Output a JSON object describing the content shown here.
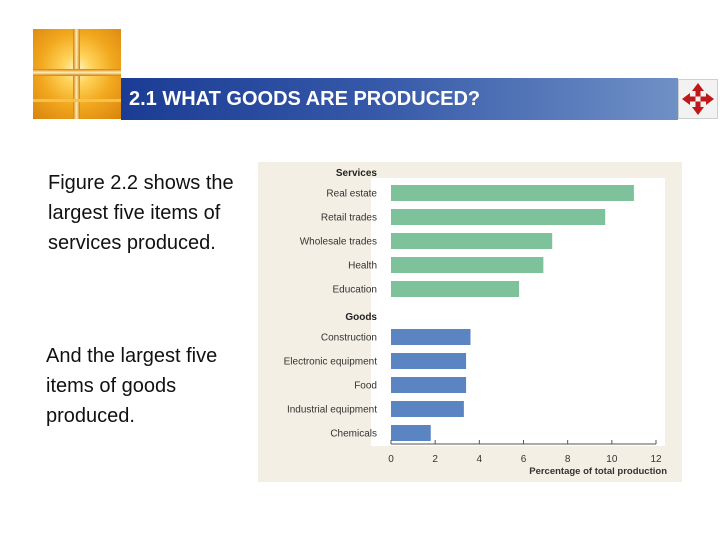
{
  "slide": {
    "title": "2.1 WHAT GOODS ARE PRODUCED?",
    "paragraph1": "Figure 2.2 shows the largest five items of services produced.",
    "paragraph2": "And the largest five items of goods produced."
  },
  "nav_icon": "four-arrows-icon",
  "colors": {
    "services": "#7ec29c",
    "goods": "#5a84c2",
    "title_bar": "#2f4fa0",
    "nav_arrows": "#c01818"
  },
  "chart_data": {
    "type": "bar",
    "orientation": "horizontal",
    "xlabel": "Percentage of total production",
    "xlim": [
      0,
      12
    ],
    "xticks": [
      0,
      2,
      4,
      6,
      8,
      10,
      12
    ],
    "grid": false,
    "groups": [
      {
        "name": "Services",
        "categories": [
          "Real estate",
          "Retail trades",
          "Wholesale trades",
          "Health",
          "Education"
        ],
        "values": [
          11.0,
          9.7,
          7.3,
          6.9,
          5.8
        ]
      },
      {
        "name": "Goods",
        "categories": [
          "Construction",
          "Electronic equipment",
          "Food",
          "Industrial equipment",
          "Chemicals"
        ],
        "values": [
          3.6,
          3.4,
          3.4,
          3.3,
          1.8
        ]
      }
    ]
  }
}
